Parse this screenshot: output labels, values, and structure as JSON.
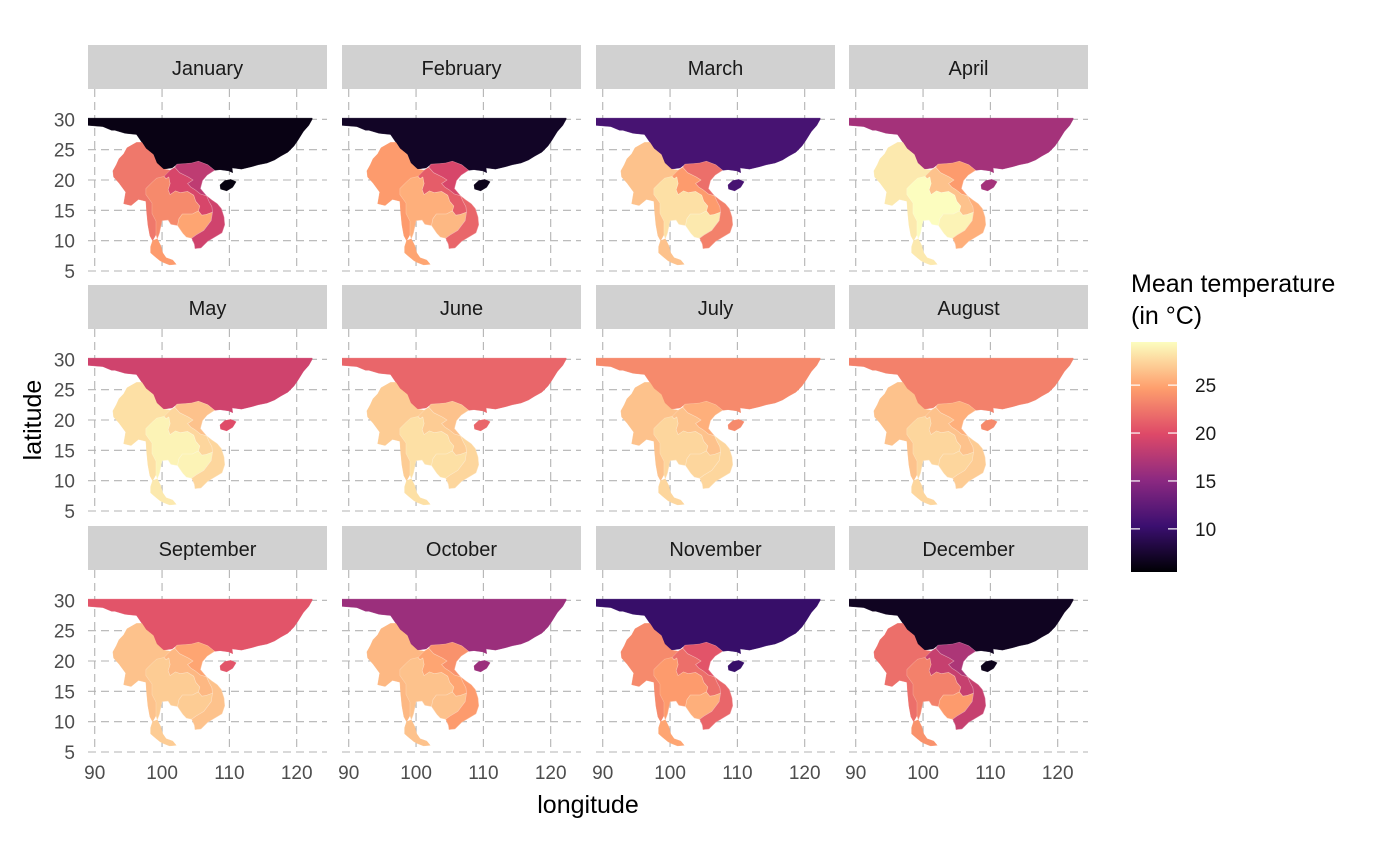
{
  "chart_data": {
    "type": "choropleth-facet",
    "xlabel": "longitude",
    "ylabel": "latitude",
    "xlim": [
      89,
      124.5
    ],
    "ylim": [
      5,
      35
    ],
    "x_ticks": [
      90,
      100,
      110,
      120
    ],
    "y_ticks": [
      5,
      10,
      15,
      20,
      25,
      30
    ],
    "grid": "dashed",
    "legend": {
      "title_line1": "Mean temperature",
      "title_line2": "(in °C)",
      "range": [
        5.5,
        29.5
      ],
      "ticks": [
        10,
        15,
        20,
        25
      ],
      "placement": "right"
    },
    "color_stops": [
      "#000004",
      "#3b0f70",
      "#8c2981",
      "#de4968",
      "#fe9f6d",
      "#fcfdbf"
    ],
    "regions": [
      "china",
      "myanmar",
      "north_vietnam",
      "laos",
      "thailand",
      "cambodia",
      "south_vietnam",
      "peninsula",
      "hainan"
    ],
    "panels": [
      {
        "month": "January",
        "values": {
          "china": 6.2,
          "myanmar": 22.5,
          "north_vietnam": 18.0,
          "laos": 19.5,
          "thailand": 23.5,
          "cambodia": 25.0,
          "south_vietnam": 19.0,
          "peninsula": 24.5,
          "hainan": 6.0
        }
      },
      {
        "month": "February",
        "values": {
          "china": 7.0,
          "myanmar": 24.5,
          "north_vietnam": 19.5,
          "laos": 21.0,
          "thailand": 25.5,
          "cambodia": 26.0,
          "south_vietnam": 21.5,
          "peninsula": 25.0,
          "hainan": 6.5
        }
      },
      {
        "month": "March",
        "values": {
          "china": 11.0,
          "myanmar": 26.5,
          "north_vietnam": 22.0,
          "laos": 24.5,
          "thailand": 28.0,
          "cambodia": 28.5,
          "south_vietnam": 23.0,
          "peninsula": 26.5,
          "hainan": 11.0
        }
      },
      {
        "month": "April",
        "values": {
          "china": 16.5,
          "myanmar": 28.5,
          "north_vietnam": 24.5,
          "laos": 26.5,
          "thailand": 29.5,
          "cambodia": 29.0,
          "south_vietnam": 25.5,
          "peninsula": 28.5,
          "hainan": 16.5
        }
      },
      {
        "month": "May",
        "values": {
          "china": 19.0,
          "myanmar": 28.0,
          "north_vietnam": 26.5,
          "laos": 27.5,
          "thailand": 29.0,
          "cambodia": 29.0,
          "south_vietnam": 27.5,
          "peninsula": 28.5,
          "hainan": 20.0
        }
      },
      {
        "month": "June",
        "values": {
          "china": 21.5,
          "myanmar": 27.0,
          "north_vietnam": 26.5,
          "laos": 27.0,
          "thailand": 28.0,
          "cambodia": 28.0,
          "south_vietnam": 27.5,
          "peninsula": 28.0,
          "hainan": 21.5
        }
      },
      {
        "month": "July",
        "values": {
          "china": 23.5,
          "myanmar": 26.5,
          "north_vietnam": 25.5,
          "laos": 26.5,
          "thailand": 27.5,
          "cambodia": 27.5,
          "south_vietnam": 27.5,
          "peninsula": 27.5,
          "hainan": 23.5
        }
      },
      {
        "month": "August",
        "values": {
          "china": 23.0,
          "myanmar": 26.5,
          "north_vietnam": 25.5,
          "laos": 26.5,
          "thailand": 27.5,
          "cambodia": 27.5,
          "south_vietnam": 27.0,
          "peninsula": 27.5,
          "hainan": 23.5
        }
      },
      {
        "month": "September",
        "values": {
          "china": 20.5,
          "myanmar": 26.5,
          "north_vietnam": 25.0,
          "laos": 26.0,
          "thailand": 27.0,
          "cambodia": 27.0,
          "south_vietnam": 26.5,
          "peninsula": 27.0,
          "hainan": 20.5
        }
      },
      {
        "month": "October",
        "values": {
          "china": 16.0,
          "myanmar": 26.0,
          "north_vietnam": 24.0,
          "laos": 25.0,
          "thailand": 26.5,
          "cambodia": 26.5,
          "south_vietnam": 24.5,
          "peninsula": 26.5,
          "hainan": 16.0
        }
      },
      {
        "month": "November",
        "values": {
          "china": 10.0,
          "myanmar": 23.5,
          "north_vietnam": 20.5,
          "laos": 22.0,
          "thailand": 24.5,
          "cambodia": 25.5,
          "south_vietnam": 21.5,
          "peninsula": 25.0,
          "hainan": 10.0
        }
      },
      {
        "month": "December",
        "values": {
          "china": 6.8,
          "myanmar": 22.0,
          "north_vietnam": 17.0,
          "laos": 18.5,
          "thailand": 23.0,
          "cambodia": 24.5,
          "south_vietnam": 18.5,
          "peninsula": 24.0,
          "hainan": 6.5
        }
      }
    ]
  }
}
